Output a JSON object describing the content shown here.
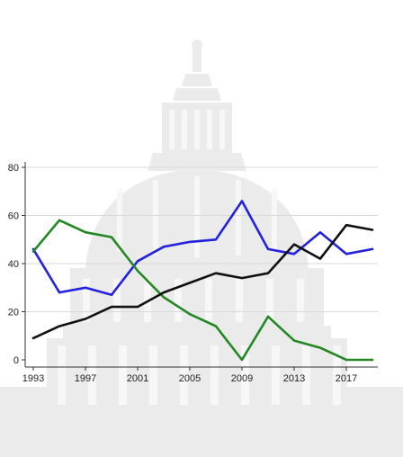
{
  "chart_data": {
    "type": "line",
    "title": "",
    "xlabel": "",
    "ylabel": "",
    "xlim": [
      1993,
      2019
    ],
    "ylim": [
      0,
      80
    ],
    "x_ticks": [
      1993,
      1997,
      2001,
      2005,
      2009,
      2013,
      2017
    ],
    "y_ticks": [
      0,
      20,
      40,
      60,
      80
    ],
    "grid": true,
    "legend": "none",
    "background_image": "capitol-dome-watermark",
    "series": [
      {
        "color": "#2222dd",
        "x": [
          1993,
          1995,
          1997,
          1999,
          2001,
          2003,
          2005,
          2007,
          2009,
          2011,
          2013,
          2015,
          2017,
          2019
        ],
        "values": [
          46,
          28,
          30,
          27,
          41,
          47,
          49,
          50,
          66,
          46,
          44,
          53,
          44,
          46
        ]
      },
      {
        "color": "#228822",
        "x": [
          1993,
          1995,
          1997,
          1999,
          2001,
          2003,
          2005,
          2007,
          2009,
          2011,
          2013,
          2015,
          2017,
          2019
        ],
        "values": [
          45,
          58,
          53,
          51,
          37,
          26,
          19,
          14,
          0,
          18,
          8,
          5,
          0,
          0
        ]
      },
      {
        "color": "#111111",
        "x": [
          1993,
          1995,
          1997,
          1999,
          2001,
          2003,
          2005,
          2007,
          2009,
          2011,
          2013,
          2015,
          2017,
          2019
        ],
        "values": [
          9,
          14,
          17,
          22,
          22,
          28,
          32,
          36,
          34,
          36,
          48,
          42,
          56,
          54
        ]
      }
    ]
  }
}
